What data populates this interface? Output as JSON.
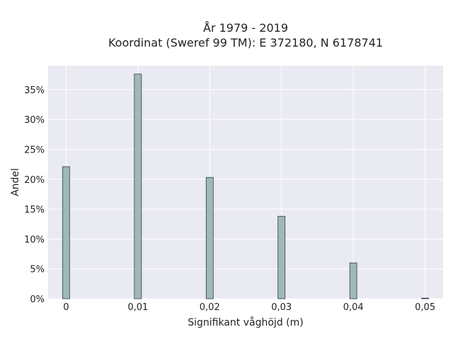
{
  "chart_data": {
    "type": "bar",
    "title_lines": [
      "År 1979 - 2019",
      "Koordinat (Sweref 99 TM): E 372180, N 6178741"
    ],
    "xlabel": "Signifikant våghöjd (m)",
    "ylabel": "Andel",
    "x": [
      0,
      0.01,
      0.02,
      0.03,
      0.04,
      0.05
    ],
    "values": [
      0.221,
      0.376,
      0.203,
      0.138,
      0.06,
      0.001
    ],
    "x_tick_labels": [
      "0",
      "0,01",
      "0,02",
      "0,03",
      "0,04",
      "0,05"
    ],
    "y_ticks": [
      0,
      0.05,
      0.1,
      0.15,
      0.2,
      0.25,
      0.3,
      0.35
    ],
    "y_tick_labels": [
      "0%",
      "5%",
      "10%",
      "15%",
      "20%",
      "25%",
      "30%",
      "35%"
    ],
    "xlim": [
      -0.0025,
      0.0525
    ],
    "ylim": [
      0,
      0.39
    ],
    "grid": true,
    "legend": "none",
    "colors": {
      "bar_fill": "#9fb8b8",
      "bar_edge": "#2f3f3f",
      "plot_bg": "#eaeaf2",
      "grid": "#ffffff"
    }
  }
}
